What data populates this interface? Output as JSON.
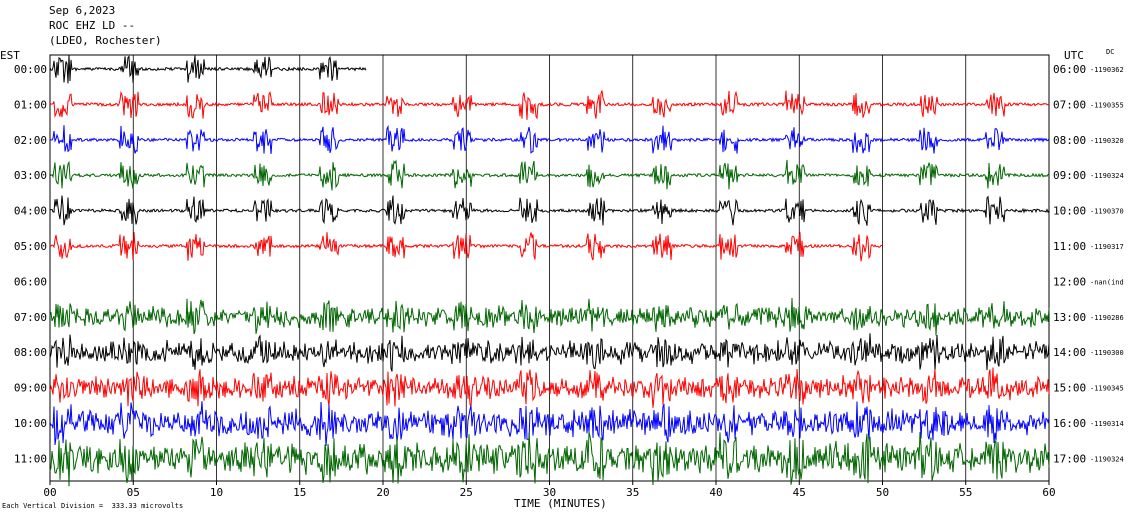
{
  "header": {
    "date": "Sep 6,2023",
    "station": "ROC EHZ LD --",
    "network": "(LDEO, Rochester)"
  },
  "left_zone": "EST",
  "right_zone": "UTC",
  "dc_label": "DC",
  "footer_note": "Each Vertical Division =  333.33 microvolts",
  "chart_data": {
    "type": "line",
    "title": "Sep 6,2023 ROC EHZ LD -- (LDEO, Rochester)",
    "xlabel": "TIME (MINUTES)",
    "x_ticks": [
      "00",
      "05",
      "10",
      "15",
      "20",
      "25",
      "30",
      "35",
      "40",
      "45",
      "50",
      "55",
      "60"
    ],
    "xlim": [
      0,
      60
    ],
    "grid": "vertical lines every 5 minutes",
    "vertical_scale": "333.33 microvolts per division",
    "rows": [
      {
        "est": "00:00",
        "utc": "06:00",
        "dc": "-1190362",
        "color": "#000000",
        "end_min": 19,
        "amp": 1.0,
        "cont": false
      },
      {
        "est": "01:00",
        "utc": "07:00",
        "dc": "-1190355",
        "color": "#ff0000",
        "end_min": 60,
        "amp": 1.0,
        "cont": false
      },
      {
        "est": "02:00",
        "utc": "08:00",
        "dc": "-1190320",
        "color": "#0000ff",
        "end_min": 60,
        "amp": 1.0,
        "cont": false
      },
      {
        "est": "03:00",
        "utc": "09:00",
        "dc": "-1190324",
        "color": "#006600",
        "end_min": 60,
        "amp": 1.0,
        "cont": false
      },
      {
        "est": "04:00",
        "utc": "10:00",
        "dc": "-1190370",
        "color": "#000000",
        "end_min": 60,
        "amp": 1.0,
        "cont": false
      },
      {
        "est": "05:00",
        "utc": "11:00",
        "dc": "-1190317",
        "color": "#ff0000",
        "end_min": 50,
        "amp": 1.0,
        "cont": false
      },
      {
        "est": "06:00",
        "utc": "12:00",
        "dc": "-nan(ind",
        "color": "#0000ff",
        "end_min": 0,
        "amp": 0,
        "cont": false
      },
      {
        "est": "07:00",
        "utc": "13:00",
        "dc": "-1190286",
        "color": "#006600",
        "end_min": 60,
        "amp": 1.2,
        "cont": true
      },
      {
        "est": "08:00",
        "utc": "14:00",
        "dc": "-1190300",
        "color": "#000000",
        "end_min": 60,
        "amp": 1.3,
        "cont": true
      },
      {
        "est": "09:00",
        "utc": "15:00",
        "dc": "-1190345",
        "color": "#ff0000",
        "end_min": 60,
        "amp": 1.3,
        "cont": true
      },
      {
        "est": "10:00",
        "utc": "16:00",
        "dc": "-1190314",
        "color": "#0000ff",
        "end_min": 60,
        "amp": 1.5,
        "cont": true
      },
      {
        "est": "11:00",
        "utc": "17:00",
        "dc": "-1190324",
        "color": "#006600",
        "end_min": 60,
        "amp": 1.8,
        "cont": true
      }
    ]
  }
}
